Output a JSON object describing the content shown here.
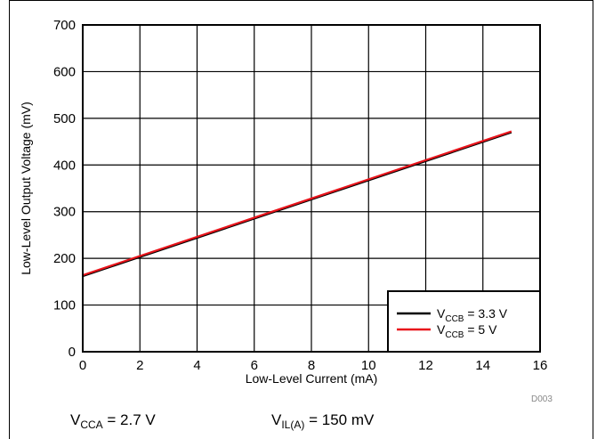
{
  "chart_data": {
    "type": "line",
    "xlabel": "Low-Level Current (mA)",
    "ylabel": "Low-Level Output Voltage (mV)",
    "xlim": [
      0,
      16
    ],
    "ylim": [
      0,
      700
    ],
    "xticks": [
      "0",
      "2",
      "4",
      "6",
      "8",
      "10",
      "12",
      "14",
      "16"
    ],
    "yticks": [
      "0",
      "100",
      "200",
      "300",
      "400",
      "500",
      "600",
      "700"
    ],
    "grid": true,
    "legend_position": "bottom-right",
    "series": [
      {
        "name_main": "V",
        "name_sub": "CCB",
        "name_value": " = 3.3 V",
        "color": "#000000",
        "x": [
          0,
          15
        ],
        "y": [
          162,
          470
        ]
      },
      {
        "name_main": "V",
        "name_sub": "CCB",
        "name_value": " = 5 V",
        "color": "#e8141b",
        "x": [
          0,
          15
        ],
        "y": [
          164,
          472
        ]
      }
    ]
  },
  "footer": {
    "cond1_main": "V",
    "cond1_sub": "CCA",
    "cond1_value": " = 2.7 V",
    "cond2_main": "V",
    "cond2_sub": "IL(A)",
    "cond2_value": " = 150 mV",
    "figure_code": "D003"
  }
}
